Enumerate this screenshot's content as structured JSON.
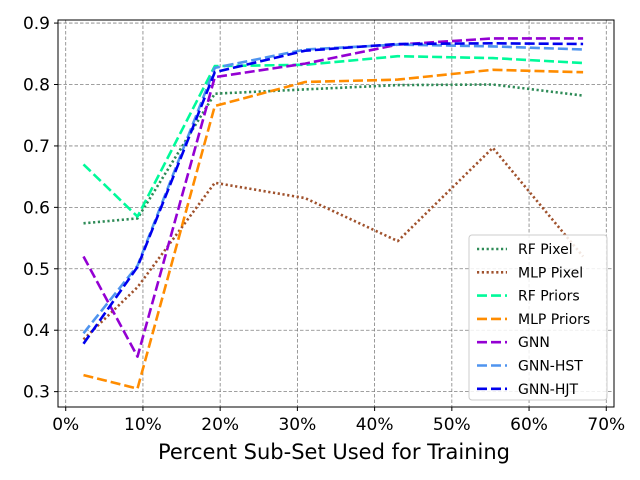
{
  "chart_data": {
    "type": "line",
    "title": "",
    "xlabel": "Percent Sub-Set Used for Training",
    "ylabel": "",
    "xlim": [
      -0.01,
      0.71
    ],
    "ylim": [
      0.275,
      0.905
    ],
    "grid": true,
    "legend_position": "lower-right",
    "x_ticks": [
      {
        "value": 0.0,
        "label": "0%"
      },
      {
        "value": 0.1,
        "label": "10%"
      },
      {
        "value": 0.2,
        "label": "20%"
      },
      {
        "value": 0.3,
        "label": "30%"
      },
      {
        "value": 0.4,
        "label": "40%"
      },
      {
        "value": 0.5,
        "label": "50%"
      },
      {
        "value": 0.6,
        "label": "60%"
      },
      {
        "value": 0.7,
        "label": "70%"
      }
    ],
    "y_ticks": [
      {
        "value": 0.3,
        "label": "0.3"
      },
      {
        "value": 0.4,
        "label": "0.4"
      },
      {
        "value": 0.5,
        "label": "0.5"
      },
      {
        "value": 0.6,
        "label": "0.6"
      },
      {
        "value": 0.7,
        "label": "0.7"
      },
      {
        "value": 0.8,
        "label": "0.8"
      },
      {
        "value": 0.9,
        "label": "0.9"
      }
    ],
    "x": [
      0.023,
      0.093,
      0.193,
      0.31,
      0.43,
      0.553,
      0.67
    ],
    "series": [
      {
        "name": "RF Pixel",
        "color": "#2e8b57",
        "style": "dotted",
        "values": [
          0.574,
          0.582,
          0.785,
          0.792,
          0.799,
          0.8,
          0.782
        ]
      },
      {
        "name": "MLP Pixel",
        "color": "#a0522d",
        "style": "dotted",
        "values": [
          0.385,
          0.47,
          0.64,
          0.615,
          0.545,
          0.697,
          0.52
        ]
      },
      {
        "name": "RF Priors",
        "color": "#00fa9a",
        "style": "dashed",
        "values": [
          0.67,
          0.585,
          0.83,
          0.832,
          0.846,
          0.843,
          0.835
        ]
      },
      {
        "name": "MLP Priors",
        "color": "#ff8c00",
        "style": "dashed",
        "values": [
          0.327,
          0.305,
          0.765,
          0.804,
          0.808,
          0.824,
          0.82
        ]
      },
      {
        "name": "GNN",
        "color": "#9400d3",
        "style": "dashed",
        "values": [
          0.52,
          0.357,
          0.812,
          0.834,
          0.865,
          0.875,
          0.875
        ]
      },
      {
        "name": "GNN-HST",
        "color": "#4f94ef",
        "style": "dashed",
        "values": [
          0.395,
          0.505,
          0.827,
          0.857,
          0.865,
          0.862,
          0.857
        ]
      },
      {
        "name": "GNN-HJT",
        "color": "#0000ee",
        "style": "dashed",
        "values": [
          0.378,
          0.503,
          0.82,
          0.855,
          0.866,
          0.867,
          0.866
        ]
      }
    ]
  }
}
